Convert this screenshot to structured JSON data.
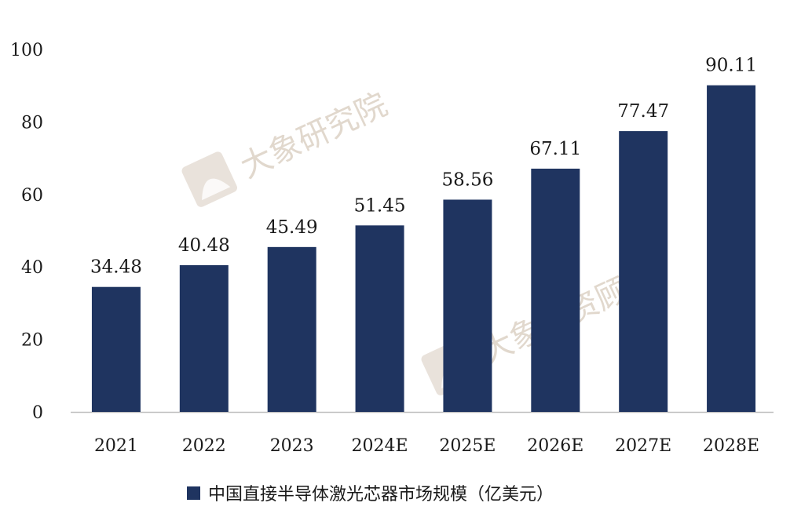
{
  "chart_data": {
    "type": "bar",
    "categories": [
      "2021",
      "2022",
      "2023",
      "2024E",
      "2025E",
      "2026E",
      "2027E",
      "2028E"
    ],
    "series": [
      {
        "name": "中国直接半导体激光芯器市场规模（亿美元）",
        "values": [
          34.48,
          40.48,
          45.49,
          51.45,
          58.56,
          67.11,
          77.47,
          90.11
        ],
        "value_labels": [
          "34.48",
          "40.48",
          "45.49",
          "51.45",
          "58.56",
          "67.11",
          "77.47",
          "90.11"
        ]
      }
    ],
    "title": "",
    "xlabel": "",
    "ylabel": "",
    "ylim": [
      0,
      100
    ],
    "yticks": [
      0,
      20,
      40,
      60,
      80,
      100
    ],
    "grid": false,
    "legend_position": "bottom-center",
    "bar_color": "#1f3460",
    "axis_color": "#bfbfbf"
  },
  "watermarks": [
    "大象研究院",
    "大象投资顾问"
  ],
  "watermark_color": "#d7cbbd"
}
